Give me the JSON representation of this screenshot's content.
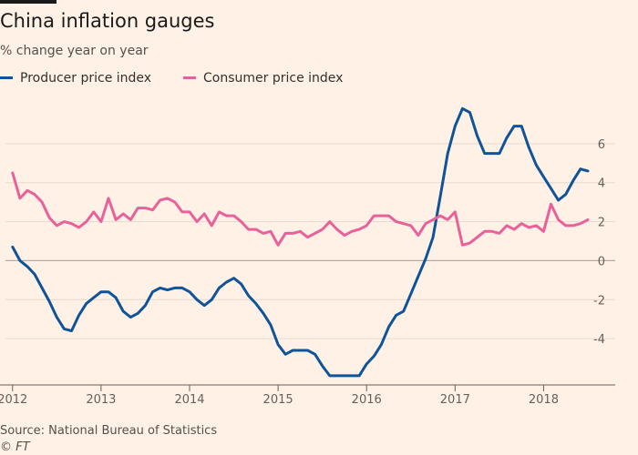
{
  "title": "China inflation gauges",
  "subtitle": "% change year on year",
  "source": "Source: National Bureau of Statistics",
  "copyright": "© FT",
  "colors": {
    "background": "#fff1e5",
    "ppi": "#0f5499",
    "cpi": "#e8619a",
    "grid": "#e6d9ce",
    "axis_text": "#66605c"
  },
  "chart_data": {
    "type": "line",
    "ylabel": "",
    "xlabel": "",
    "ylim": [
      -6,
      8
    ],
    "yticks": [
      -4,
      -2,
      0,
      2,
      4,
      6
    ],
    "xlim": [
      2011.92,
      2018.5
    ],
    "xticks": [
      {
        "label": "2012",
        "x": 2012
      },
      {
        "label": "2013",
        "x": 2013
      },
      {
        "label": "2014",
        "x": 2014
      },
      {
        "label": "2015",
        "x": 2015
      },
      {
        "label": "2016",
        "x": 2016
      },
      {
        "label": "2017",
        "x": 2017
      },
      {
        "label": "2018",
        "x": 2018
      }
    ],
    "grid": true,
    "legend_position": "top-left",
    "series": [
      {
        "name": "Producer price index",
        "color": "#0f5499",
        "values": [
          0.7,
          0.0,
          -0.3,
          -0.7,
          -1.4,
          -2.1,
          -2.9,
          -3.5,
          -3.6,
          -2.8,
          -2.2,
          -1.9,
          -1.6,
          -1.6,
          -1.9,
          -2.6,
          -2.9,
          -2.7,
          -2.3,
          -1.6,
          -1.4,
          -1.5,
          -1.4,
          -1.4,
          -1.6,
          -2.0,
          -2.3,
          -2.0,
          -1.4,
          -1.1,
          -0.9,
          -1.2,
          -1.8,
          -2.2,
          -2.7,
          -3.3,
          -4.3,
          -4.8,
          -4.6,
          -4.6,
          -4.6,
          -4.8,
          -5.4,
          -5.9,
          -5.9,
          -5.9,
          -5.9,
          -5.9,
          -5.3,
          -4.9,
          -4.3,
          -3.4,
          -2.8,
          -2.6,
          -1.7,
          -0.8,
          0.1,
          1.2,
          3.3,
          5.5,
          6.9,
          7.8,
          7.6,
          6.4,
          5.5,
          5.5,
          5.5,
          6.3,
          6.9,
          6.9,
          5.8,
          4.9,
          4.3,
          3.7,
          3.1,
          3.4,
          4.1,
          4.7,
          4.6
        ]
      },
      {
        "name": "Consumer price index",
        "color": "#e8619a",
        "values": [
          4.5,
          3.2,
          3.6,
          3.4,
          3.0,
          2.2,
          1.8,
          2.0,
          1.9,
          1.7,
          2.0,
          2.5,
          2.0,
          3.2,
          2.1,
          2.4,
          2.1,
          2.7,
          2.7,
          2.6,
          3.1,
          3.2,
          3.0,
          2.5,
          2.5,
          2.0,
          2.4,
          1.8,
          2.5,
          2.3,
          2.3,
          2.0,
          1.6,
          1.6,
          1.4,
          1.5,
          0.8,
          1.4,
          1.4,
          1.5,
          1.2,
          1.4,
          1.6,
          2.0,
          1.6,
          1.3,
          1.5,
          1.6,
          1.8,
          2.3,
          2.3,
          2.3,
          2.0,
          1.9,
          1.8,
          1.3,
          1.9,
          2.1,
          2.3,
          2.1,
          2.5,
          0.8,
          0.9,
          1.2,
          1.5,
          1.5,
          1.4,
          1.8,
          1.6,
          1.9,
          1.7,
          1.8,
          1.5,
          2.9,
          2.1,
          1.8,
          1.8,
          1.9,
          2.1
        ]
      }
    ]
  }
}
